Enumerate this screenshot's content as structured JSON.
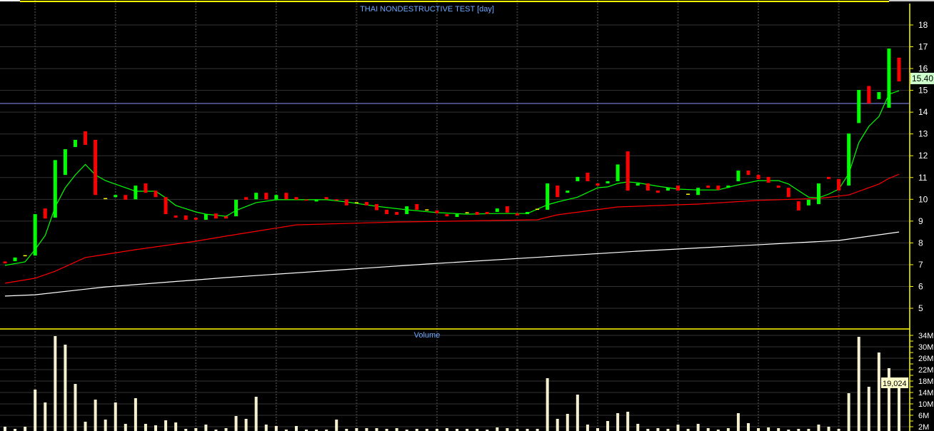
{
  "chart_data": {
    "type": "candlestick",
    "title": "THAI NONDESTRUCTIVE TEST [day]",
    "price_axis": {
      "ticks": [
        5,
        6,
        7,
        8,
        9,
        10,
        11,
        12,
        13,
        14,
        15,
        16,
        17,
        18
      ],
      "range": [
        4.2,
        19
      ]
    },
    "last_price_label": "15.40",
    "reference_line": 14.4,
    "candles": [
      [
        7.15,
        7.06
      ],
      [
        7.16,
        7.33
      ],
      [
        7.42,
        7.42
      ],
      [
        7.42,
        9.32
      ],
      [
        9.58,
        9.12
      ],
      [
        9.16,
        11.8
      ],
      [
        11.12,
        12.3
      ],
      [
        12.4,
        12.73
      ],
      [
        13.12,
        12.5
      ],
      [
        12.73,
        10.2
      ],
      [
        10.04,
        10.04
      ],
      [
        10.1,
        10.2
      ],
      [
        10.2,
        9.98
      ],
      [
        10.0,
        10.63
      ],
      [
        10.73,
        10.3
      ],
      [
        10.4,
        10.1
      ],
      [
        10.1,
        9.32
      ],
      [
        9.26,
        9.16
      ],
      [
        9.26,
        9.06
      ],
      [
        9.16,
        9.06
      ],
      [
        9.06,
        9.32
      ],
      [
        9.35,
        9.12
      ],
      [
        9.22,
        9.12
      ],
      [
        9.22,
        9.98
      ],
      [
        10.1,
        9.98
      ],
      [
        10.0,
        10.3
      ],
      [
        10.3,
        10.0
      ],
      [
        10.0,
        10.2
      ],
      [
        10.3,
        10.0
      ],
      [
        10.1,
        9.98
      ],
      [
        9.99,
        9.94
      ],
      [
        9.9,
        9.99
      ],
      [
        10.1,
        10.0
      ],
      [
        10.0,
        9.94
      ],
      [
        10.0,
        9.72
      ],
      [
        9.85,
        9.85
      ],
      [
        9.88,
        9.72
      ],
      [
        9.78,
        9.5
      ],
      [
        9.52,
        9.32
      ],
      [
        9.42,
        9.29
      ],
      [
        9.32,
        9.68
      ],
      [
        9.78,
        9.52
      ],
      [
        9.52,
        9.52
      ],
      [
        9.49,
        9.36
      ],
      [
        9.32,
        9.22
      ],
      [
        9.19,
        9.32
      ],
      [
        9.39,
        9.39
      ],
      [
        9.42,
        9.29
      ],
      [
        9.42,
        9.32
      ],
      [
        9.42,
        9.58
      ],
      [
        9.68,
        9.39
      ],
      [
        9.36,
        9.26
      ],
      [
        9.32,
        9.42
      ],
      [
        9.55,
        9.55
      ],
      [
        9.52,
        10.73
      ],
      [
        10.63,
        10.1
      ],
      [
        10.3,
        10.4
      ],
      [
        10.83,
        11.03
      ],
      [
        11.22,
        10.83
      ],
      [
        10.73,
        10.63
      ],
      [
        10.73,
        10.83
      ],
      [
        10.83,
        11.6
      ],
      [
        12.2,
        10.4
      ],
      [
        10.63,
        10.73
      ],
      [
        10.73,
        10.4
      ],
      [
        10.4,
        10.3
      ],
      [
        10.4,
        10.53
      ],
      [
        10.63,
        10.4
      ],
      [
        10.24,
        10.24
      ],
      [
        10.2,
        10.53
      ],
      [
        10.63,
        10.53
      ],
      [
        10.63,
        10.43
      ],
      [
        10.53,
        10.63
      ],
      [
        10.83,
        11.32
      ],
      [
        11.32,
        11.12
      ],
      [
        11.12,
        10.93
      ],
      [
        11.03,
        10.76
      ],
      [
        10.63,
        10.53
      ],
      [
        10.53,
        10.1
      ],
      [
        9.91,
        9.49
      ],
      [
        9.72,
        9.98
      ],
      [
        9.78,
        10.73
      ],
      [
        11.03,
        10.93
      ],
      [
        10.93,
        10.4
      ],
      [
        10.63,
        13.02
      ],
      [
        13.5,
        15.02
      ],
      [
        15.2,
        14.4
      ],
      [
        14.6,
        14.92
      ],
      [
        14.2,
        16.92
      ],
      [
        16.5,
        15.41
      ]
    ],
    "candle_format": [
      "open",
      "close"
    ],
    "moving_averages": [
      {
        "color": "#00ff00",
        "points": [
          [
            1,
            6.97
          ],
          [
            3,
            7.13
          ],
          [
            4,
            7.7
          ],
          [
            5,
            8.34
          ],
          [
            6,
            9.65
          ],
          [
            7,
            10.53
          ],
          [
            8,
            11.12
          ],
          [
            9,
            11.6
          ],
          [
            10,
            11.12
          ],
          [
            11,
            10.86
          ],
          [
            13,
            10.53
          ],
          [
            14,
            10.37
          ],
          [
            16,
            10.37
          ],
          [
            17,
            10.07
          ],
          [
            18,
            9.72
          ],
          [
            20,
            9.42
          ],
          [
            21,
            9.32
          ],
          [
            23,
            9.22
          ],
          [
            24,
            9.49
          ],
          [
            26,
            9.85
          ],
          [
            28,
            9.98
          ],
          [
            33,
            9.98
          ],
          [
            35,
            9.88
          ],
          [
            38,
            9.68
          ],
          [
            41,
            9.52
          ],
          [
            44,
            9.39
          ],
          [
            47,
            9.32
          ],
          [
            50,
            9.35
          ],
          [
            53,
            9.35
          ],
          [
            54,
            9.55
          ],
          [
            55,
            9.75
          ],
          [
            56,
            9.88
          ],
          [
            58,
            10.1
          ],
          [
            60,
            10.53
          ],
          [
            61,
            10.57
          ],
          [
            62,
            10.73
          ],
          [
            63,
            10.8
          ],
          [
            64,
            10.76
          ],
          [
            66,
            10.6
          ],
          [
            68,
            10.47
          ],
          [
            70,
            10.43
          ],
          [
            72,
            10.43
          ],
          [
            74,
            10.67
          ],
          [
            76,
            10.86
          ],
          [
            78,
            10.86
          ],
          [
            79,
            10.7
          ],
          [
            80,
            10.4
          ],
          [
            81,
            10.1
          ],
          [
            82,
            10.07
          ],
          [
            83,
            10.24
          ],
          [
            84,
            10.47
          ],
          [
            85,
            11.18
          ],
          [
            86,
            12.6
          ],
          [
            87,
            13.35
          ],
          [
            88,
            13.8
          ],
          [
            89,
            14.82
          ],
          [
            90,
            14.98
          ]
        ]
      },
      {
        "color": "#ff0000",
        "points": [
          [
            1,
            6.15
          ],
          [
            4,
            6.38
          ],
          [
            6,
            6.7
          ],
          [
            9,
            7.33
          ],
          [
            14,
            7.69
          ],
          [
            20,
            8.08
          ],
          [
            23,
            8.31
          ],
          [
            30,
            8.83
          ],
          [
            40,
            8.96
          ],
          [
            50,
            9.03
          ],
          [
            54,
            9.06
          ],
          [
            56,
            9.29
          ],
          [
            62,
            9.65
          ],
          [
            70,
            9.78
          ],
          [
            76,
            9.95
          ],
          [
            82,
            10.04
          ],
          [
            85,
            10.2
          ],
          [
            87,
            10.53
          ],
          [
            88,
            10.7
          ],
          [
            89,
            10.96
          ],
          [
            90,
            11.15
          ]
        ]
      },
      {
        "color": "#ffffff",
        "points": [
          [
            1,
            5.56
          ],
          [
            4,
            5.62
          ],
          [
            11,
            5.98
          ],
          [
            23,
            6.41
          ],
          [
            43,
            7.03
          ],
          [
            64,
            7.62
          ],
          [
            84,
            8.11
          ],
          [
            90,
            8.5
          ]
        ]
      }
    ],
    "volume": {
      "title": "Volume",
      "unit": "M",
      "tick_labels": [
        "34M",
        "30M",
        "26M",
        "22M",
        "18M",
        "14M",
        "10M",
        "6M",
        "2M"
      ],
      "ticks": [
        34,
        30,
        26,
        22,
        18,
        14,
        10,
        6,
        2
      ],
      "last_value_label": "19,024",
      "values": [
        2.0,
        1.25,
        2.0,
        15,
        10.5,
        33.75,
        30.75,
        17,
        3.75,
        11.5,
        4.5,
        10.5,
        3.0,
        12,
        3.0,
        2.5,
        4.25,
        3.5,
        1.25,
        1.5,
        2.75,
        1.0,
        1.5,
        5.75,
        4.75,
        12.5,
        2.75,
        2.25,
        1.0,
        2.25,
        1.0,
        1.0,
        1.0,
        4.5,
        1.25,
        1.5,
        1.5,
        1.5,
        1.25,
        1.5,
        1.0,
        1.25,
        1.25,
        1.25,
        1.5,
        1.25,
        1.25,
        1.25,
        1.0,
        1.75,
        1.5,
        1.25,
        1.25,
        1.25,
        19,
        4.75,
        6.5,
        13.25,
        2.75,
        1.5,
        4.0,
        6.75,
        7.25,
        3.0,
        1.25,
        1.5,
        1.25,
        2.75,
        1.25,
        3.0,
        1.5,
        1.0,
        1.5,
        6.75,
        3.25,
        1.5,
        1.75,
        1.5,
        1.0,
        1.25,
        1.25,
        2.75,
        2.0,
        1.25,
        13.75,
        33.5,
        16,
        28,
        22.5,
        19.25
      ]
    },
    "colors": {
      "up": "#00ff00",
      "down": "#ff0000",
      "doji": "#ffff00",
      "volume_bar": "#f5f0d0",
      "axis": "#ffff00",
      "grid": "#333333",
      "title": "#6fa8ff",
      "reference_line": "#8f8fff"
    },
    "grid": true
  }
}
